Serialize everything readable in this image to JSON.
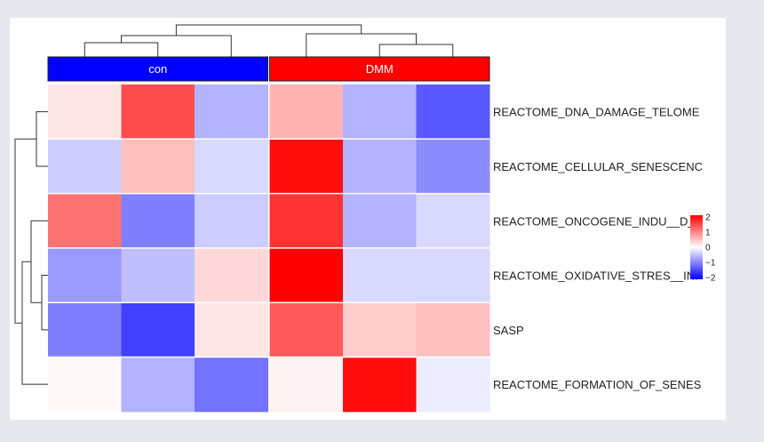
{
  "chart_data": {
    "type": "heatmap",
    "title": "",
    "column_groups": [
      {
        "name": "con",
        "color": "#0000ff",
        "columns": 3
      },
      {
        "name": "DMM",
        "color": "#ff0000",
        "columns": 3
      }
    ],
    "rows": [
      "REACTOME_DNA_DAMAGE_TELOME",
      "REACTOME_CELLULAR_SENESCENC",
      "REACTOME_ONCOGENE_INDU__D_",
      "REACTOME_OXIDATIVE_STRES__INI",
      "SASP",
      "REACTOME_FORMATION_OF_SENES"
    ],
    "values": [
      [
        0.2,
        1.4,
        -0.6,
        0.6,
        -0.6,
        -1.3
      ],
      [
        -0.4,
        0.5,
        -0.3,
        1.9,
        -0.6,
        -0.9
      ],
      [
        1.1,
        -1.0,
        -0.4,
        1.6,
        -0.6,
        -0.3
      ],
      [
        -0.8,
        -0.5,
        0.3,
        2.0,
        -0.3,
        -0.3
      ],
      [
        -1.0,
        -1.5,
        0.2,
        1.3,
        0.4,
        0.5
      ],
      [
        0.05,
        -0.6,
        -1.1,
        0.1,
        1.9,
        -0.15
      ]
    ],
    "color_scale": {
      "min": -2,
      "mid": 0,
      "max": 2,
      "low": "#0000ff",
      "midColor": "#ffffff",
      "high": "#ff0000"
    },
    "legend_ticks": [
      "2",
      "1",
      "0",
      "−1",
      "−2"
    ],
    "dendrograms": {
      "rows": true,
      "columns": true
    }
  }
}
